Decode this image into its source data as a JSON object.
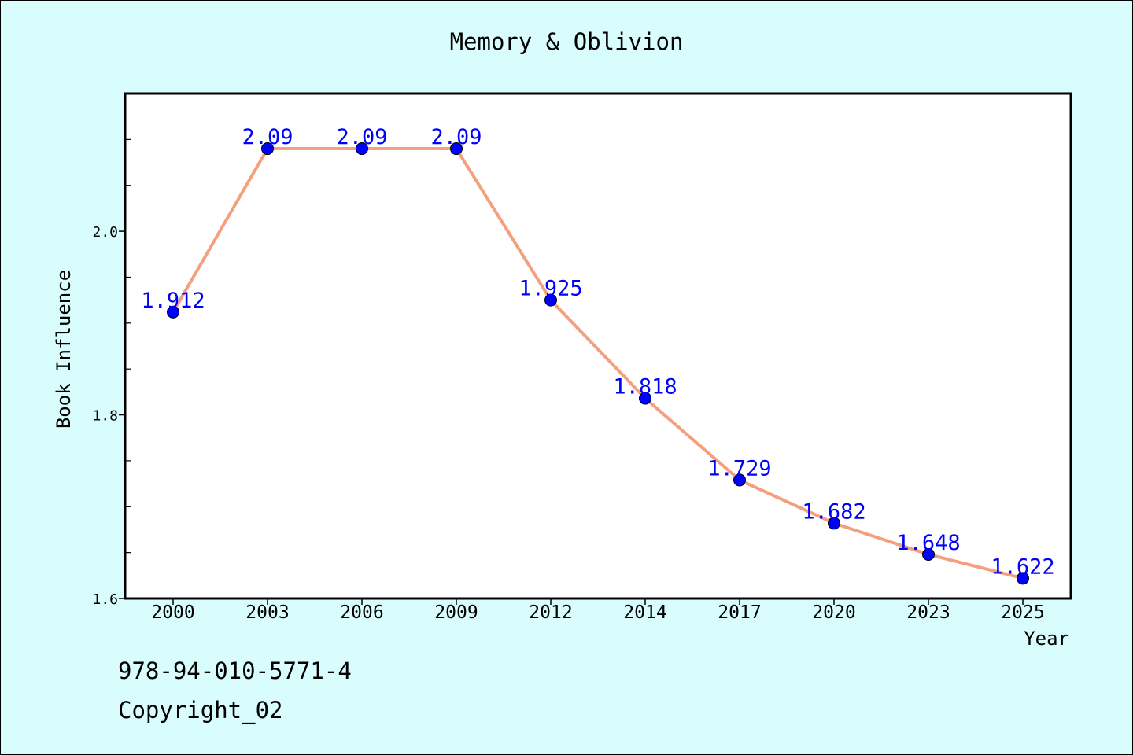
{
  "chart_data": {
    "type": "line",
    "title": "Memory & Oblivion",
    "xlabel": "Year",
    "ylabel": "Book Influence",
    "categories": [
      "2000",
      "2003",
      "2006",
      "2009",
      "2012",
      "2014",
      "2017",
      "2020",
      "2023",
      "2025"
    ],
    "values": [
      1.912,
      2.09,
      2.09,
      2.09,
      1.925,
      1.818,
      1.729,
      1.682,
      1.648,
      1.622
    ],
    "data_labels": [
      "1.912",
      "2.09",
      "2.09",
      "2.09",
      "1.925",
      "1.818",
      "1.729",
      "1.682",
      "1.648",
      "1.622"
    ],
    "ylim": [
      1.6,
      2.15
    ],
    "y_ticks": [
      1.6,
      1.8,
      2.0
    ],
    "y_tick_labels": [
      "1.6",
      "1.8",
      "2.0"
    ],
    "y_minor_step": 0.05,
    "grid": false,
    "legend": "none",
    "colors": {
      "line": "#f4a07f",
      "marker": "#0000ff",
      "data_label": "#0000ff",
      "plot_background": "#ffffff",
      "figure_background": "#d9fdfd"
    }
  },
  "footer": {
    "isbn": "978-94-010-5771-4",
    "copyright": "Copyright_02"
  }
}
